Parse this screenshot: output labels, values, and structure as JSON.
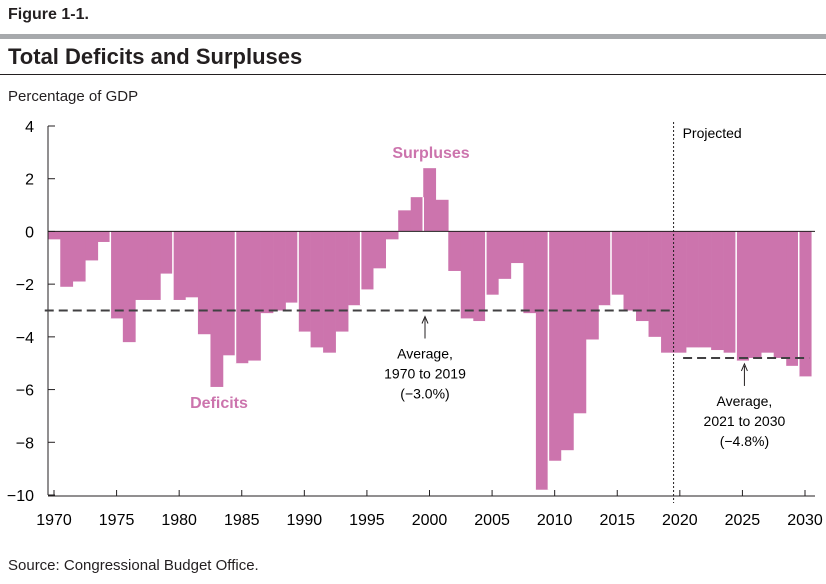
{
  "figure_label": "Figure 1-1.",
  "title": "Total Deficits and Surpluses",
  "source": "Source: Congressional Budget Office.",
  "chart_data": {
    "type": "bar",
    "title": "Total Deficits and Surpluses",
    "ylabel": "Percentage of GDP",
    "xlabel": "",
    "ylim": [
      -10,
      4
    ],
    "xlim": [
      1970,
      2030
    ],
    "yticks": [
      4,
      2,
      0,
      -2,
      -4,
      -6,
      -8,
      -10
    ],
    "ytick_labels": [
      "4",
      "2",
      "0",
      "−2",
      "−4",
      "−6",
      "−8",
      "−10"
    ],
    "xticks": [
      1970,
      1975,
      1980,
      1985,
      1990,
      1995,
      2000,
      2005,
      2010,
      2015,
      2020,
      2025,
      2030
    ],
    "bar_color": "#cc74ad",
    "grid": false,
    "years": [
      1970,
      1971,
      1972,
      1973,
      1974,
      1975,
      1976,
      1977,
      1978,
      1979,
      1980,
      1981,
      1982,
      1983,
      1984,
      1985,
      1986,
      1987,
      1988,
      1989,
      1990,
      1991,
      1992,
      1993,
      1994,
      1995,
      1996,
      1997,
      1998,
      1999,
      2000,
      2001,
      2002,
      2003,
      2004,
      2005,
      2006,
      2007,
      2008,
      2009,
      2010,
      2011,
      2012,
      2013,
      2014,
      2015,
      2016,
      2017,
      2018,
      2019,
      2020,
      2021,
      2022,
      2023,
      2024,
      2025,
      2026,
      2027,
      2028,
      2029,
      2030
    ],
    "values": [
      -0.3,
      -2.1,
      -1.9,
      -1.1,
      -0.4,
      -3.3,
      -4.2,
      -2.6,
      -2.6,
      -1.6,
      -2.6,
      -2.5,
      -3.9,
      -5.9,
      -4.7,
      -5.0,
      -4.9,
      -3.1,
      -3.0,
      -2.7,
      -3.8,
      -4.4,
      -4.6,
      -3.8,
      -2.8,
      -2.2,
      -1.4,
      -0.3,
      0.8,
      1.3,
      2.4,
      1.2,
      -1.5,
      -3.3,
      -3.4,
      -2.4,
      -1.8,
      -1.2,
      -3.1,
      -9.8,
      -8.7,
      -8.3,
      -6.9,
      -4.1,
      -2.8,
      -2.4,
      -3.0,
      -3.4,
      -4.0,
      -4.6,
      -4.6,
      -4.4,
      -4.4,
      -4.5,
      -4.6,
      -4.9,
      -4.8,
      -4.6,
      -4.8,
      -5.1,
      -5.5
    ],
    "annotations": {
      "surpluses": "Surpluses",
      "deficits": "Deficits",
      "projected": "Projected",
      "projected_start": 2019.5,
      "avg_hist": {
        "line1": "Average,",
        "line2": "1970 to 2019",
        "line3": "(−3.0%)",
        "value": -3.0,
        "from": 1970,
        "to": 2019
      },
      "avg_proj": {
        "line1": "Average,",
        "line2": "2021 to 2030",
        "line3": "(−4.8%)",
        "value": -4.8,
        "from": 2021,
        "to": 2030
      }
    }
  }
}
